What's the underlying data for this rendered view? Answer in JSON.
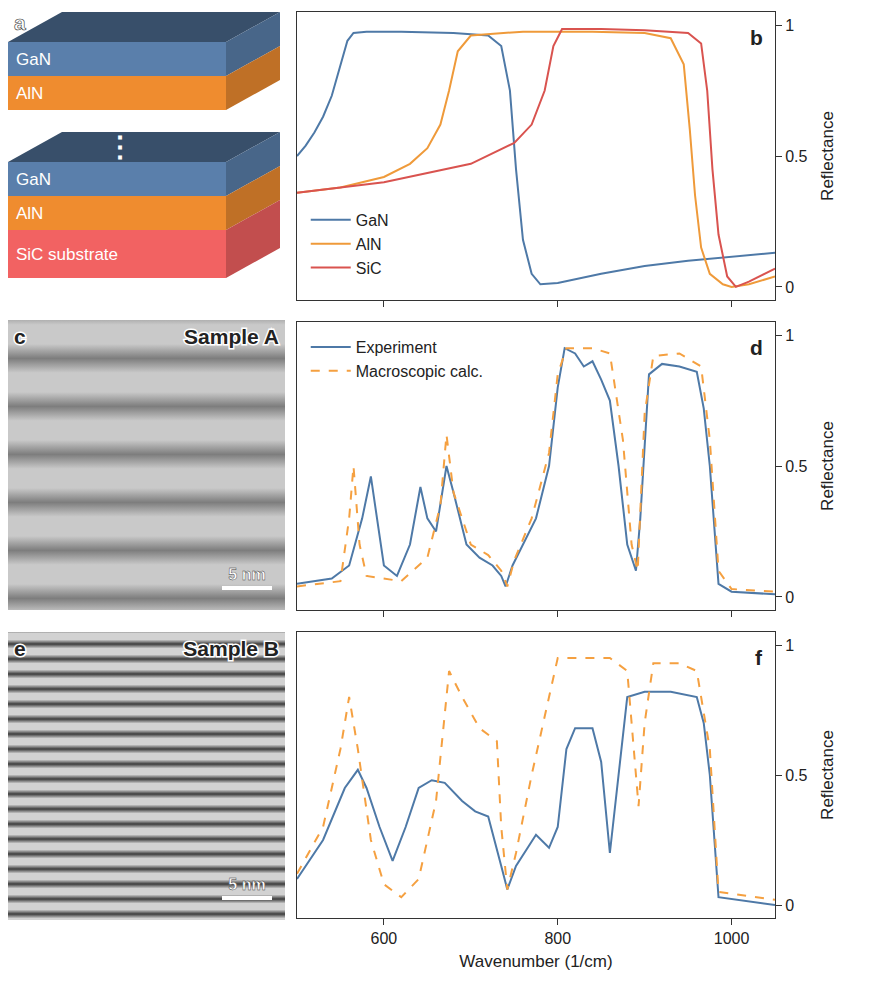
{
  "diagram": {
    "panel_label": "a",
    "layers": [
      {
        "label": "GaN",
        "color": "#5a7fab"
      },
      {
        "label": "AlN",
        "color": "#ef8c2f"
      },
      {
        "label": "⋮"
      },
      {
        "label": "GaN",
        "color": "#5a7fab"
      },
      {
        "label": "AlN",
        "color": "#ef8c2f"
      },
      {
        "label": "SiC substrate",
        "color": "#f26262"
      }
    ]
  },
  "images": [
    {
      "panel_label": "c",
      "label": "Sample A",
      "scale_bar": "5 nm"
    },
    {
      "panel_label": "e",
      "label": "Sample B",
      "scale_bar": "5 nm"
    }
  ],
  "chart_data": [
    {
      "type": "line",
      "panel_label": "b",
      "y_label": "Reflectance",
      "xlim": [
        500,
        1050
      ],
      "xticks": [
        600,
        800,
        1000
      ],
      "ylim": [
        -0.05,
        1.05
      ],
      "yticks": [
        0,
        0.5,
        1
      ],
      "grid": false,
      "tick_labels": "y",
      "legend": "lower left",
      "series": [
        {
          "name": "GaN",
          "color": "#4e79a7",
          "line_style": "solid",
          "x": [
            500,
            510,
            520,
            530,
            540,
            550,
            558,
            565,
            580,
            620,
            680,
            720,
            735,
            745,
            752,
            760,
            770,
            780,
            800,
            850,
            900,
            950,
            1000,
            1050
          ],
          "values": [
            0.5,
            0.54,
            0.59,
            0.65,
            0.73,
            0.85,
            0.94,
            0.97,
            0.975,
            0.975,
            0.97,
            0.96,
            0.92,
            0.75,
            0.45,
            0.18,
            0.05,
            0.01,
            0.015,
            0.05,
            0.08,
            0.1,
            0.115,
            0.13
          ]
        },
        {
          "name": "AlN",
          "color": "#ef9a3a",
          "line_style": "solid",
          "x": [
            500,
            550,
            600,
            630,
            650,
            665,
            675,
            685,
            700,
            760,
            840,
            900,
            930,
            945,
            952,
            958,
            965,
            975,
            990,
            1000,
            1020,
            1050
          ],
          "values": [
            0.36,
            0.38,
            0.42,
            0.47,
            0.53,
            0.62,
            0.75,
            0.9,
            0.96,
            0.975,
            0.975,
            0.97,
            0.95,
            0.85,
            0.6,
            0.35,
            0.15,
            0.05,
            0.01,
            0.0,
            0.01,
            0.04
          ]
        },
        {
          "name": "SiC",
          "color": "#d9534f",
          "line_style": "solid",
          "x": [
            500,
            600,
            700,
            750,
            770,
            785,
            795,
            805,
            850,
            900,
            950,
            965,
            972,
            978,
            985,
            995,
            1005,
            1020,
            1050
          ],
          "values": [
            0.36,
            0.4,
            0.47,
            0.55,
            0.62,
            0.75,
            0.92,
            0.985,
            0.985,
            0.98,
            0.97,
            0.93,
            0.75,
            0.45,
            0.2,
            0.04,
            0.0,
            0.02,
            0.07
          ]
        }
      ]
    },
    {
      "type": "line",
      "panel_label": "d",
      "y_label": "Reflectance",
      "xlim": [
        500,
        1050
      ],
      "xticks": [
        600,
        800,
        1000
      ],
      "ylim": [
        -0.05,
        1.05
      ],
      "yticks": [
        0,
        0.5,
        1
      ],
      "grid": false,
      "tick_labels": "y",
      "legend": "upper left",
      "series": [
        {
          "name": "Experiment",
          "color": "#4e79a7",
          "line_style": "solid",
          "x": [
            500,
            540,
            560,
            575,
            585,
            592,
            600,
            615,
            630,
            642,
            650,
            660,
            672,
            680,
            695,
            710,
            725,
            735,
            740,
            748,
            760,
            775,
            790,
            800,
            808,
            820,
            830,
            840,
            850,
            860,
            870,
            880,
            890,
            895,
            905,
            920,
            940,
            960,
            968,
            975,
            985,
            1000,
            1050
          ],
          "values": [
            0.05,
            0.07,
            0.12,
            0.3,
            0.46,
            0.3,
            0.12,
            0.08,
            0.2,
            0.42,
            0.3,
            0.25,
            0.5,
            0.4,
            0.2,
            0.15,
            0.12,
            0.08,
            0.04,
            0.12,
            0.2,
            0.3,
            0.5,
            0.8,
            0.95,
            0.93,
            0.88,
            0.9,
            0.83,
            0.75,
            0.5,
            0.2,
            0.1,
            0.3,
            0.85,
            0.89,
            0.88,
            0.86,
            0.72,
            0.5,
            0.05,
            0.02,
            0.01
          ]
        },
        {
          "name": "Macroscopic calc.",
          "color": "#f5a040",
          "line_style": "dash",
          "x": [
            500,
            550,
            560,
            565,
            572,
            580,
            620,
            650,
            665,
            672,
            680,
            700,
            720,
            735,
            742,
            750,
            770,
            790,
            800,
            810,
            840,
            860,
            875,
            885,
            892,
            900,
            910,
            940,
            965,
            975,
            985,
            1000,
            1050
          ],
          "values": [
            0.04,
            0.06,
            0.3,
            0.5,
            0.2,
            0.08,
            0.06,
            0.15,
            0.35,
            0.62,
            0.4,
            0.2,
            0.16,
            0.1,
            0.04,
            0.14,
            0.3,
            0.55,
            0.85,
            0.95,
            0.95,
            0.93,
            0.6,
            0.2,
            0.1,
            0.7,
            0.92,
            0.93,
            0.88,
            0.6,
            0.1,
            0.03,
            0.02
          ]
        }
      ]
    },
    {
      "type": "line",
      "panel_label": "f",
      "x_label": "Wavenumber (1/cm)",
      "y_label": "Reflectance",
      "xlim": [
        500,
        1050
      ],
      "xticks": [
        600,
        800,
        1000
      ],
      "ylim": [
        -0.05,
        1.05
      ],
      "yticks": [
        0,
        0.5,
        1
      ],
      "grid": false,
      "series": [
        {
          "color": "#4e79a7",
          "line_style": "solid",
          "x": [
            500,
            530,
            555,
            570,
            580,
            595,
            610,
            625,
            640,
            655,
            670,
            690,
            705,
            720,
            735,
            742,
            752,
            765,
            775,
            790,
            800,
            810,
            820,
            840,
            850,
            860,
            870,
            880,
            900,
            930,
            960,
            968,
            975,
            985,
            1050
          ],
          "values": [
            0.1,
            0.25,
            0.45,
            0.52,
            0.45,
            0.3,
            0.17,
            0.3,
            0.45,
            0.48,
            0.47,
            0.4,
            0.36,
            0.34,
            0.15,
            0.06,
            0.15,
            0.22,
            0.27,
            0.22,
            0.3,
            0.6,
            0.68,
            0.68,
            0.55,
            0.2,
            0.5,
            0.8,
            0.82,
            0.82,
            0.8,
            0.7,
            0.5,
            0.03,
            0.0
          ]
        },
        {
          "color": "#f5a040",
          "line_style": "dash",
          "x": [
            500,
            530,
            550,
            560,
            570,
            585,
            600,
            620,
            640,
            660,
            675,
            690,
            710,
            730,
            735,
            742,
            752,
            770,
            790,
            800,
            860,
            880,
            893,
            900,
            910,
            940,
            960,
            975,
            985,
            1050
          ],
          "values": [
            0.12,
            0.3,
            0.6,
            0.8,
            0.6,
            0.25,
            0.08,
            0.03,
            0.1,
            0.4,
            0.9,
            0.8,
            0.68,
            0.63,
            0.3,
            0.06,
            0.2,
            0.5,
            0.8,
            0.95,
            0.95,
            0.9,
            0.38,
            0.7,
            0.93,
            0.93,
            0.9,
            0.6,
            0.05,
            0.02
          ]
        }
      ]
    }
  ]
}
